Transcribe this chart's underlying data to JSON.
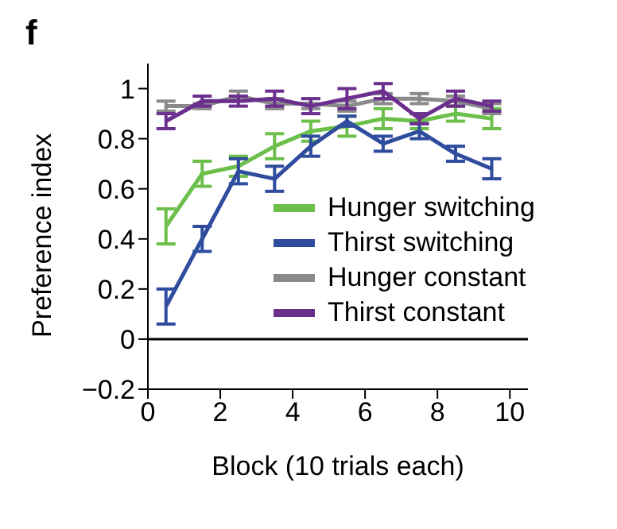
{
  "chart_data": {
    "type": "line",
    "title": "f",
    "xlabel": "Block (10 trials each)",
    "ylabel": "Preference index",
    "x": [
      0.5,
      1.5,
      2.5,
      3.5,
      4.5,
      5.5,
      6.5,
      7.5,
      8.5,
      9.5
    ],
    "series": [
      {
        "name": "Hunger switching",
        "color": "#6cbf4a",
        "values": [
          0.45,
          0.66,
          0.69,
          0.77,
          0.83,
          0.85,
          0.88,
          0.87,
          0.9,
          0.88
        ],
        "errors": [
          0.07,
          0.05,
          0.04,
          0.05,
          0.04,
          0.04,
          0.04,
          0.03,
          0.03,
          0.04
        ]
      },
      {
        "name": "Thirst switching",
        "color": "#2f4c9e",
        "values": [
          0.13,
          0.4,
          0.67,
          0.64,
          0.77,
          0.87,
          0.78,
          0.83,
          0.74,
          0.68
        ],
        "errors": [
          0.07,
          0.05,
          0.05,
          0.05,
          0.04,
          0.02,
          0.03,
          0.03,
          0.03,
          0.04
        ]
      },
      {
        "name": "Hunger constant",
        "color": "#8a8a8a",
        "values": [
          0.93,
          0.93,
          0.97,
          0.94,
          0.94,
          0.93,
          0.96,
          0.96,
          0.95,
          0.92
        ],
        "errors": [
          0.02,
          0.01,
          0.02,
          0.02,
          0.02,
          0.02,
          0.02,
          0.02,
          0.02,
          0.02
        ]
      },
      {
        "name": "Thirst constant",
        "color": "#6b2f8e",
        "values": [
          0.87,
          0.95,
          0.95,
          0.96,
          0.93,
          0.96,
          0.99,
          0.88,
          0.96,
          0.93
        ],
        "errors": [
          0.03,
          0.02,
          0.02,
          0.03,
          0.03,
          0.04,
          0.03,
          0.02,
          0.03,
          0.02
        ]
      }
    ],
    "xlim": [
      0,
      10.5
    ],
    "xticks": [
      0,
      2,
      4,
      6,
      8,
      10
    ],
    "ylim": [
      -0.2,
      1.1
    ],
    "yticks": [
      {
        "value": -0.2,
        "label": "−0.2"
      },
      0,
      0.2,
      0.4,
      0.6,
      0.8,
      1
    ],
    "ref_lines": [
      {
        "axis": "y",
        "value": 0,
        "color": "#000000"
      }
    ],
    "grid": false,
    "legend": "bottom right",
    "marker": "none",
    "line_style": "solid"
  }
}
